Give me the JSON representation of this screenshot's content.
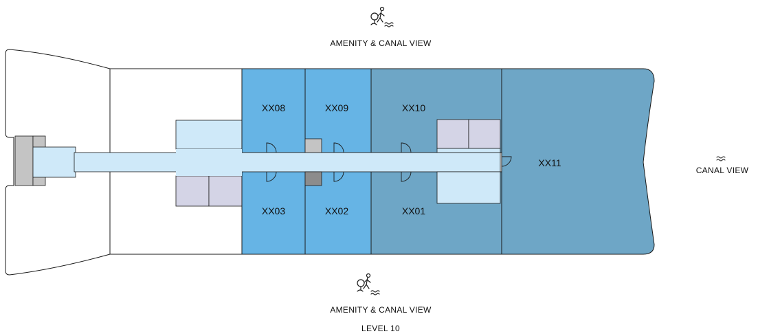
{
  "units": {
    "xx08": "XX08",
    "xx09": "XX09",
    "xx10": "XX10",
    "xx11": "XX11",
    "xx03": "XX03",
    "xx02": "XX02",
    "xx01": "XX01"
  },
  "views": {
    "top": "AMENITY & CANAL VIEW",
    "right": "CANAL VIEW",
    "bottom": "AMENITY & CANAL VIEW"
  },
  "level": "LEVEL 10",
  "colors": {
    "unit_light_blue": "#66b4e5",
    "unit_dark_blue": "#6ea6c6",
    "corridor": "#cfe9f9",
    "storage": "#d4d4e6",
    "core_gray": "#c4c4c4",
    "core_dark": "#8c8c8c",
    "outline": "#1a1a1a"
  },
  "icons": {
    "top": "person-walking-by-water-icon",
    "right": "water-waves-icon",
    "bottom": "person-walking-by-water-icon"
  }
}
